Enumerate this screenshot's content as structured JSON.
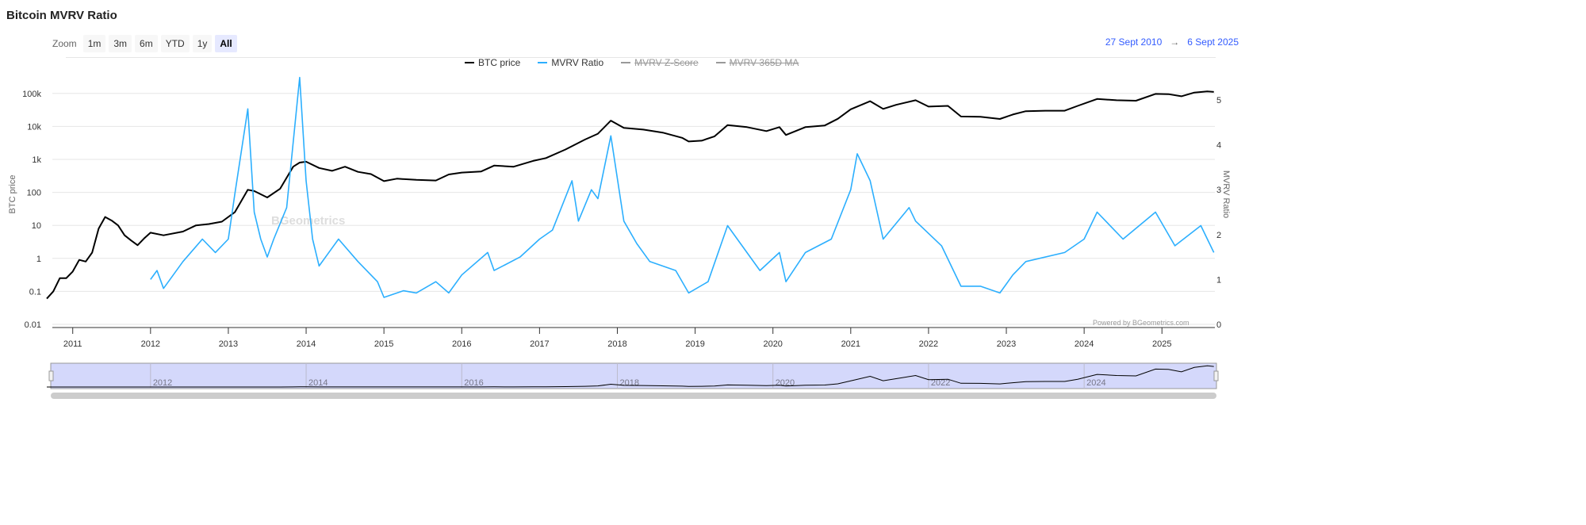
{
  "title": "Bitcoin MVRV Ratio",
  "zoom": {
    "label": "Zoom",
    "buttons": [
      "1m",
      "3m",
      "6m",
      "YTD",
      "1y",
      "All"
    ],
    "selected": "All"
  },
  "range": {
    "from": "27 Sept 2010",
    "arrow": "→",
    "to": "6 Sept 2025"
  },
  "watermark": "BGeometrics",
  "credit": "Powered by BGeometrics.com",
  "colors": {
    "btc": "#000000",
    "mvrv": "#2caffe",
    "navigator_fill": "#d4d8fb",
    "accent": "#335cff"
  },
  "chart_data": {
    "type": "line",
    "x_range": [
      "2010-09-27",
      "2025-09-06"
    ],
    "x_ticks": [
      "2011",
      "2012",
      "2013",
      "2014",
      "2015",
      "2016",
      "2017",
      "2018",
      "2019",
      "2020",
      "2021",
      "2022",
      "2023",
      "2024",
      "2025"
    ],
    "y_left": {
      "label": "BTC price",
      "scale": "log",
      "ticks": [
        "0.01",
        "0.1",
        "1",
        "10",
        "100",
        "1k",
        "10k",
        "100k"
      ]
    },
    "y_right": {
      "label": "MVRV Ratio",
      "scale": "linear",
      "ticks": [
        "0",
        "1",
        "2",
        "3",
        "4",
        "5"
      ]
    },
    "grid": true,
    "legend_position": "top-center",
    "series": [
      {
        "name": "BTC price",
        "axis": "left",
        "visible": true,
        "color": "#000000",
        "data": [
          [
            "2010-09",
            0.06
          ],
          [
            "2010-10",
            0.1
          ],
          [
            "2010-11",
            0.25
          ],
          [
            "2010-12",
            0.25
          ],
          [
            "2011-01",
            0.4
          ],
          [
            "2011-02",
            0.9
          ],
          [
            "2011-03",
            0.8
          ],
          [
            "2011-04",
            1.5
          ],
          [
            "2011-05",
            8
          ],
          [
            "2011-06",
            18
          ],
          [
            "2011-07",
            14
          ],
          [
            "2011-08",
            10
          ],
          [
            "2011-09",
            5
          ],
          [
            "2011-10",
            3.5
          ],
          [
            "2011-11",
            2.5
          ],
          [
            "2011-12",
            4
          ],
          [
            "2012-01",
            6
          ],
          [
            "2012-03",
            5
          ],
          [
            "2012-06",
            6.5
          ],
          [
            "2012-08",
            10
          ],
          [
            "2012-10",
            11
          ],
          [
            "2012-12",
            13
          ],
          [
            "2013-02",
            25
          ],
          [
            "2013-04",
            120
          ],
          [
            "2013-05",
            110
          ],
          [
            "2013-07",
            70
          ],
          [
            "2013-09",
            130
          ],
          [
            "2013-11",
            600
          ],
          [
            "2013-12",
            800
          ],
          [
            "2014-01",
            850
          ],
          [
            "2014-03",
            550
          ],
          [
            "2014-05",
            450
          ],
          [
            "2014-07",
            600
          ],
          [
            "2014-09",
            420
          ],
          [
            "2014-11",
            360
          ],
          [
            "2015-01",
            220
          ],
          [
            "2015-03",
            260
          ],
          [
            "2015-06",
            240
          ],
          [
            "2015-09",
            230
          ],
          [
            "2015-11",
            350
          ],
          [
            "2016-01",
            400
          ],
          [
            "2016-04",
            430
          ],
          [
            "2016-06",
            650
          ],
          [
            "2016-09",
            600
          ],
          [
            "2016-12",
            900
          ],
          [
            "2017-02",
            1100
          ],
          [
            "2017-05",
            2000
          ],
          [
            "2017-08",
            4000
          ],
          [
            "2017-10",
            6000
          ],
          [
            "2017-12",
            15000
          ],
          [
            "2018-02",
            9000
          ],
          [
            "2018-05",
            8000
          ],
          [
            "2018-08",
            6500
          ],
          [
            "2018-11",
            4500
          ],
          [
            "2018-12",
            3500
          ],
          [
            "2019-02",
            3700
          ],
          [
            "2019-04",
            5000
          ],
          [
            "2019-06",
            11000
          ],
          [
            "2019-09",
            9500
          ],
          [
            "2019-12",
            7200
          ],
          [
            "2020-02",
            9500
          ],
          [
            "2020-03",
            5500
          ],
          [
            "2020-06",
            9500
          ],
          [
            "2020-09",
            10700
          ],
          [
            "2020-11",
            17000
          ],
          [
            "2021-01",
            33000
          ],
          [
            "2021-04",
            58000
          ],
          [
            "2021-06",
            34000
          ],
          [
            "2021-08",
            45000
          ],
          [
            "2021-11",
            62000
          ],
          [
            "2022-01",
            40000
          ],
          [
            "2022-04",
            42000
          ],
          [
            "2022-06",
            20000
          ],
          [
            "2022-09",
            19500
          ],
          [
            "2022-12",
            16800
          ],
          [
            "2023-02",
            23000
          ],
          [
            "2023-04",
            29000
          ],
          [
            "2023-07",
            30000
          ],
          [
            "2023-10",
            30000
          ],
          [
            "2023-12",
            42000
          ],
          [
            "2024-03",
            68000
          ],
          [
            "2024-06",
            62000
          ],
          [
            "2024-09",
            60000
          ],
          [
            "2024-12",
            97000
          ],
          [
            "2025-02",
            95000
          ],
          [
            "2025-04",
            82000
          ],
          [
            "2025-06",
            106000
          ],
          [
            "2025-08",
            115000
          ],
          [
            "2025-09",
            111000
          ]
        ]
      },
      {
        "name": "MVRV Ratio",
        "axis": "right",
        "visible": true,
        "color": "#2caffe",
        "data": [
          [
            "2012-01",
            1.0
          ],
          [
            "2012-02",
            1.2
          ],
          [
            "2012-03",
            0.8
          ],
          [
            "2012-06",
            1.4
          ],
          [
            "2012-09",
            1.9
          ],
          [
            "2012-11",
            1.6
          ],
          [
            "2013-01",
            1.9
          ],
          [
            "2013-02",
            2.9
          ],
          [
            "2013-04",
            4.8
          ],
          [
            "2013-05",
            2.5
          ],
          [
            "2013-06",
            1.9
          ],
          [
            "2013-07",
            1.5
          ],
          [
            "2013-08",
            1.9
          ],
          [
            "2013-10",
            2.6
          ],
          [
            "2013-12",
            5.5
          ],
          [
            "2014-01",
            3.2
          ],
          [
            "2014-02",
            1.9
          ],
          [
            "2014-03",
            1.3
          ],
          [
            "2014-05",
            1.7
          ],
          [
            "2014-06",
            1.9
          ],
          [
            "2014-09",
            1.4
          ],
          [
            "2014-12",
            0.95
          ],
          [
            "2015-01",
            0.6
          ],
          [
            "2015-04",
            0.75
          ],
          [
            "2015-06",
            0.7
          ],
          [
            "2015-09",
            0.95
          ],
          [
            "2015-11",
            0.7
          ],
          [
            "2016-01",
            1.1
          ],
          [
            "2016-05",
            1.6
          ],
          [
            "2016-06",
            1.2
          ],
          [
            "2016-10",
            1.5
          ],
          [
            "2017-01",
            1.9
          ],
          [
            "2017-03",
            2.1
          ],
          [
            "2017-06",
            3.2
          ],
          [
            "2017-07",
            2.3
          ],
          [
            "2017-09",
            3.0
          ],
          [
            "2017-10",
            2.8
          ],
          [
            "2017-12",
            4.2
          ],
          [
            "2018-02",
            2.3
          ],
          [
            "2018-04",
            1.8
          ],
          [
            "2018-06",
            1.4
          ],
          [
            "2018-10",
            1.2
          ],
          [
            "2018-12",
            0.7
          ],
          [
            "2019-03",
            0.95
          ],
          [
            "2019-06",
            2.2
          ],
          [
            "2019-08",
            1.8
          ],
          [
            "2019-11",
            1.2
          ],
          [
            "2020-02",
            1.6
          ],
          [
            "2020-03",
            0.95
          ],
          [
            "2020-06",
            1.6
          ],
          [
            "2020-10",
            1.9
          ],
          [
            "2021-01",
            3.0
          ],
          [
            "2021-02",
            3.8
          ],
          [
            "2021-04",
            3.2
          ],
          [
            "2021-06",
            1.9
          ],
          [
            "2021-10",
            2.6
          ],
          [
            "2021-11",
            2.3
          ],
          [
            "2022-03",
            1.75
          ],
          [
            "2022-06",
            0.85
          ],
          [
            "2022-09",
            0.85
          ],
          [
            "2022-12",
            0.7
          ],
          [
            "2023-02",
            1.1
          ],
          [
            "2023-04",
            1.4
          ],
          [
            "2023-10",
            1.6
          ],
          [
            "2024-01",
            1.9
          ],
          [
            "2024-03",
            2.5
          ],
          [
            "2024-07",
            1.9
          ],
          [
            "2024-12",
            2.5
          ],
          [
            "2025-03",
            1.75
          ],
          [
            "2025-07",
            2.2
          ],
          [
            "2025-09",
            1.6
          ]
        ]
      },
      {
        "name": "MVRV Z-Score",
        "visible": false
      },
      {
        "name": "MVRV 365D MA",
        "visible": false
      }
    ],
    "navigator": {
      "x_ticks": [
        "2012",
        "2014",
        "2016",
        "2018",
        "2020",
        "2022",
        "2024"
      ]
    }
  }
}
